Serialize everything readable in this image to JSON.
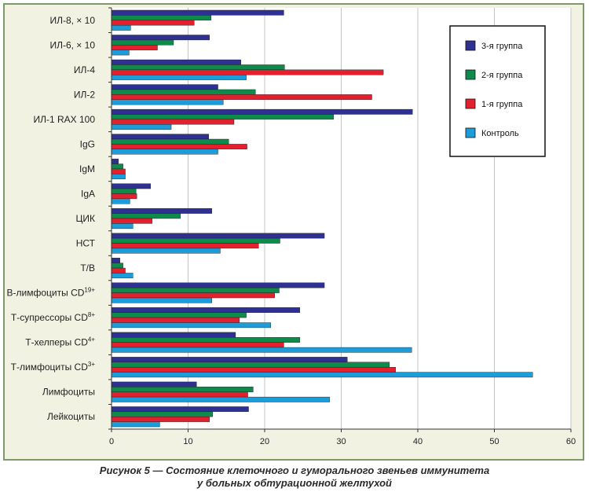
{
  "chart_data": {
    "type": "bar",
    "orientation": "horizontal",
    "categories": [
      "ИЛ-8, × 10",
      "ИЛ-6, × 10",
      "ИЛ-4",
      "ИЛ-2",
      "ИЛ-1 RAX 100",
      "IgG",
      "IgM",
      "IgA",
      "ЦИК",
      "НСТ",
      "Т/В",
      "В-лимфоциты CD19+",
      "Т-супрессоры CD8+",
      "Т-хелперы CD4+",
      "Т-лимфоциты CD3+",
      "Лимфоциты",
      "Лейкоциты"
    ],
    "category_labels": [
      {
        "text": "ИЛ-8, × 10",
        "sup": ""
      },
      {
        "text": "ИЛ-6, × 10",
        "sup": ""
      },
      {
        "text": "ИЛ-4",
        "sup": ""
      },
      {
        "text": "ИЛ-2",
        "sup": ""
      },
      {
        "text": "ИЛ-1 RAX 100",
        "sup": ""
      },
      {
        "text": "IgG",
        "sup": ""
      },
      {
        "text": "IgM",
        "sup": ""
      },
      {
        "text": "IgA",
        "sup": ""
      },
      {
        "text": "ЦИК",
        "sup": ""
      },
      {
        "text": "НСТ",
        "sup": ""
      },
      {
        "text": "Т/В",
        "sup": ""
      },
      {
        "text": "В-лимфоциты CD",
        "sup": "19+"
      },
      {
        "text": "Т-супрессоры CD",
        "sup": "8+"
      },
      {
        "text": "Т-хелперы CD",
        "sup": "4+"
      },
      {
        "text": "Т-лимфоциты CD",
        "sup": "3+"
      },
      {
        "text": "Лимфоциты",
        "sup": ""
      },
      {
        "text": "Лейкоциты",
        "sup": ""
      }
    ],
    "series": [
      {
        "name": "3-я группа",
        "color": "#2e3192",
        "values": [
          22.5,
          12.8,
          16.9,
          13.9,
          39.3,
          12.7,
          0.9,
          5.1,
          13.1,
          27.8,
          1.1,
          27.8,
          24.6,
          16.2,
          30.8,
          11.1,
          17.9
        ]
      },
      {
        "name": "2-я группа",
        "color": "#0e8a4a",
        "values": [
          13.0,
          8.1,
          22.6,
          18.8,
          29.0,
          15.3,
          1.5,
          3.2,
          9.0,
          22.0,
          1.5,
          21.9,
          17.6,
          24.6,
          36.3,
          18.5,
          13.2
        ]
      },
      {
        "name": "1-я группа",
        "color": "#e5202e",
        "values": [
          10.8,
          6.0,
          35.5,
          34.0,
          16.0,
          17.7,
          1.8,
          3.3,
          5.3,
          19.2,
          1.8,
          21.3,
          16.7,
          22.5,
          37.1,
          17.8,
          12.8
        ]
      },
      {
        "name": "Контроль",
        "color": "#1c9cd8",
        "values": [
          2.5,
          2.3,
          17.6,
          14.6,
          7.8,
          13.9,
          1.8,
          2.4,
          2.8,
          14.2,
          2.8,
          13.1,
          20.8,
          39.2,
          55.0,
          28.5,
          6.3
        ]
      }
    ],
    "xlim": [
      0,
      60
    ],
    "xticks": [
      0,
      10,
      20,
      30,
      40,
      50,
      60
    ],
    "grid": true,
    "legend_position": "top-right",
    "legend_order": [
      0,
      1,
      2,
      3
    ]
  },
  "caption": {
    "line1": "Рисунок 5 — Состояние клеточного и гуморального звеньев иммунитета",
    "line2": "у больных обтурационной желтухой"
  }
}
